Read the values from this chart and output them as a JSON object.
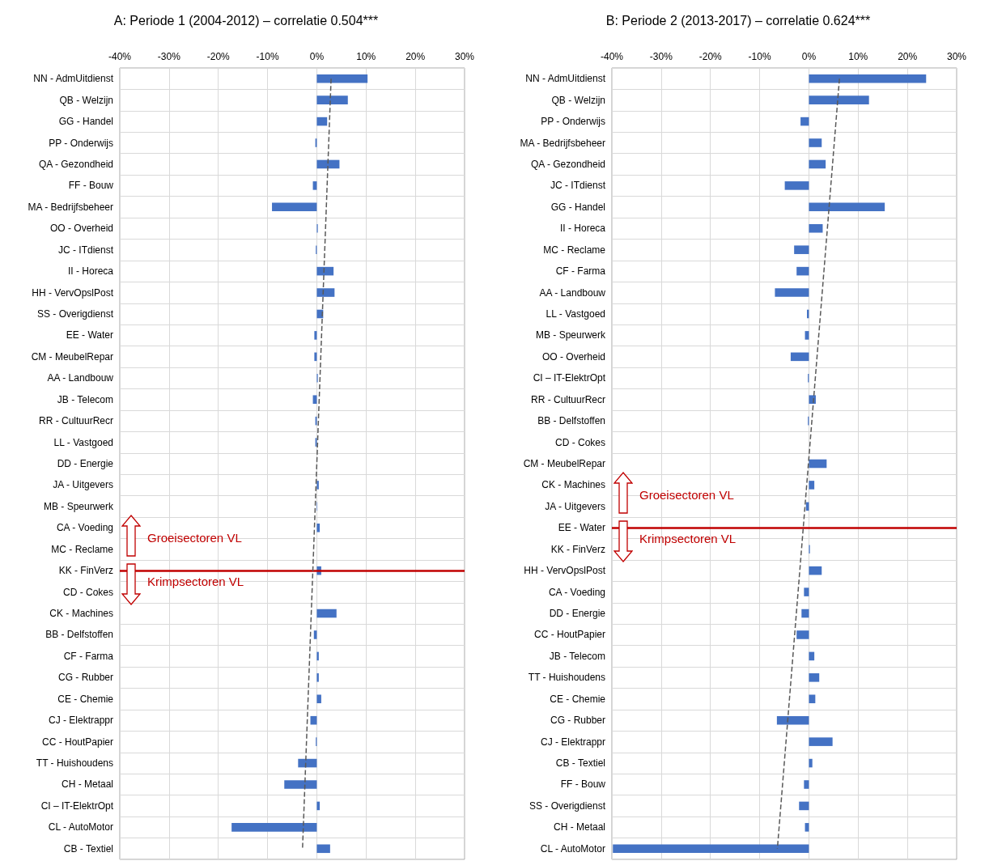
{
  "chart_data": [
    {
      "type": "bar",
      "orientation": "horizontal",
      "title": "A: Periode 1 (2004-2012) – correlatie 0.504***",
      "categories": [
        "NN - AdmUitdienst",
        "QB - Welzijn",
        "GG - Handel",
        "PP - Onderwijs",
        "QA - Gezondheid",
        "FF - Bouw",
        "MA - Bedrijfsbeheer",
        "OO - Overheid",
        "JC - ITdienst",
        "II - Horeca",
        "HH - VervOpslPost",
        "SS - Overigdienst",
        "EE - Water",
        "CM - MeubelRepar",
        "AA - Landbouw",
        "JB - Telecom",
        "RR - CultuurRecr",
        "LL - Vastgoed",
        "DD - Energie",
        "JA - Uitgevers",
        "MB - Speurwerk",
        "CA - Voeding",
        "MC - Reclame",
        "KK - FinVerz",
        "CD - Cokes",
        "CK - Machines",
        "BB - Delfstoffen",
        "CF - Farma",
        "CG - Rubber",
        "CE - Chemie",
        "CJ - Elektrappr",
        "CC - HoutPapier",
        "TT - Huishoudens",
        "CH - Metaal",
        "CI – IT-ElektrOpt",
        "CL - AutoMotor",
        "CB - Textiel"
      ],
      "series": [
        {
          "color": "#4472c4",
          "values": [
            10.3,
            6.3,
            2.1,
            -0.3,
            4.6,
            -0.8,
            -9.1,
            0.2,
            -0.2,
            3.4,
            3.6,
            1.3,
            -0.5,
            -0.5,
            0.2,
            -0.8,
            -0.3,
            -0.3,
            null,
            0.4,
            0.1,
            0.6,
            null,
            0.9,
            null,
            4.0,
            -0.6,
            0.4,
            0.4,
            0.9,
            -1.3,
            -0.2,
            -3.8,
            -6.6,
            0.6,
            -17.3,
            2.7
          ]
        },
        {
          "type": "line",
          "color": "#595959",
          "line_style": "dashed",
          "marker": "none",
          "values": [
            2.9,
            null,
            null,
            null,
            null,
            null,
            null,
            null,
            null,
            null,
            null,
            null,
            null,
            null,
            null,
            null,
            null,
            null,
            null,
            null,
            null,
            null,
            null,
            null,
            null,
            null,
            null,
            null,
            null,
            null,
            null,
            null,
            null,
            null,
            null,
            null,
            -2.9
          ]
        }
      ],
      "xlim": [
        -40,
        30
      ],
      "xticks": [
        {
          "value": -40,
          "label": "-40%"
        },
        {
          "value": -30,
          "label": "-30%"
        },
        {
          "value": -20,
          "label": "-20%"
        },
        {
          "value": -10,
          "label": "-10%"
        },
        {
          "value": 0,
          "label": "0%"
        },
        {
          "value": 10,
          "label": "10%"
        },
        {
          "value": 20,
          "label": "20%"
        },
        {
          "value": 30,
          "label": "30%"
        }
      ],
      "grid": true,
      "ref_lines": [
        {
          "axis": "y",
          "value": "KK - FinVerz",
          "color": "#c00000"
        }
      ],
      "annotations": [
        "Groeisectoren VL",
        "Krimpsectoren VL"
      ]
    },
    {
      "type": "bar",
      "orientation": "horizontal",
      "title": "B: Periode 2 (2013-2017) – correlatie 0.624***",
      "categories": [
        "NN - AdmUitdienst",
        "QB - Welzijn",
        "PP - Onderwijs",
        "MA - Bedrijfsbeheer",
        "QA - Gezondheid",
        "JC - ITdienst",
        "GG - Handel",
        "II - Horeca",
        "MC - Reclame",
        "CF - Farma",
        "AA - Landbouw",
        "LL - Vastgoed",
        "MB - Speurwerk",
        "OO - Overheid",
        "CI – IT-ElektrOpt",
        "RR - CultuurRecr",
        "BB - Delfstoffen",
        "CD - Cokes",
        "CM - MeubelRepar",
        "CK - Machines",
        "JA - Uitgevers",
        "EE - Water",
        "KK - FinVerz",
        "HH - VervOpslPost",
        "CA - Voeding",
        "DD - Energie",
        "CC - HoutPapier",
        "JB - Telecom",
        "TT - Huishoudens",
        "CE - Chemie",
        "CG - Rubber",
        "CJ - Elektrappr",
        "CB - Textiel",
        "FF - Bouw",
        "SS - Overigdienst",
        "CH - Metaal",
        "CL - AutoMotor"
      ],
      "series": [
        {
          "color": "#4472c4",
          "values": [
            23.8,
            12.2,
            -1.7,
            2.6,
            3.4,
            -4.9,
            15.4,
            2.8,
            -3.0,
            -2.5,
            -6.9,
            -0.4,
            -0.8,
            -3.7,
            -0.2,
            1.4,
            -0.2,
            null,
            3.6,
            1.1,
            -0.6,
            0,
            0.2,
            2.6,
            -1.0,
            -1.5,
            -2.5,
            1.1,
            2.1,
            1.3,
            -6.5,
            4.8,
            0.7,
            -1.0,
            -2.0,
            -0.8,
            -39.8
          ]
        },
        {
          "type": "line",
          "color": "#595959",
          "line_style": "dashed",
          "marker": "none",
          "values": [
            6.2,
            null,
            null,
            null,
            null,
            null,
            null,
            null,
            null,
            null,
            null,
            null,
            null,
            null,
            null,
            null,
            null,
            null,
            null,
            null,
            null,
            null,
            null,
            null,
            null,
            null,
            null,
            null,
            null,
            null,
            null,
            null,
            null,
            null,
            null,
            null,
            -6.4
          ]
        }
      ],
      "xlim": [
        -40,
        30
      ],
      "xticks": [
        {
          "value": -40,
          "label": "-40%"
        },
        {
          "value": -30,
          "label": "-30%"
        },
        {
          "value": -20,
          "label": "-20%"
        },
        {
          "value": -10,
          "label": "-10%"
        },
        {
          "value": 0,
          "label": "0%"
        },
        {
          "value": 10,
          "label": "10%"
        },
        {
          "value": 20,
          "label": "20%"
        },
        {
          "value": 30,
          "label": "30%"
        }
      ],
      "grid": true,
      "ref_lines": [
        {
          "axis": "y",
          "value": "EE - Water",
          "color": "#c00000"
        }
      ],
      "annotations": [
        "Groeisectoren VL",
        "Krimpsectoren VL"
      ]
    }
  ]
}
